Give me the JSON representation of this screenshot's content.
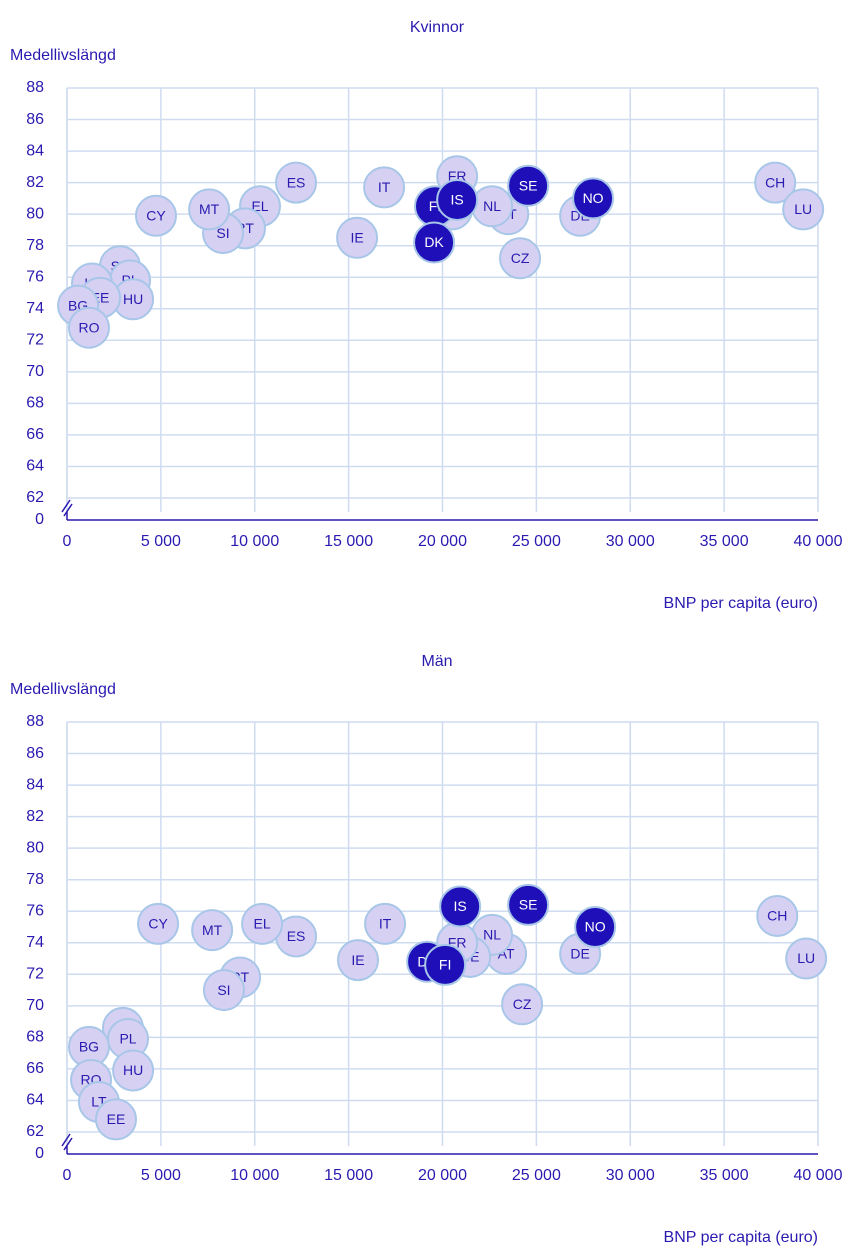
{
  "chart_data": [
    {
      "type": "scatter",
      "title": "Kvinnor",
      "y_label": "Medellivslängd",
      "x_label": "BNP per capita (euro)",
      "xlim": [
        0,
        40000
      ],
      "xticks": [
        0,
        {
          "value": 5000,
          "label": "5 000"
        },
        {
          "value": 10000,
          "label": "10 000"
        },
        {
          "value": 15000,
          "label": "15 000"
        },
        {
          "value": 20000,
          "label": "20 000"
        },
        {
          "value": 25000,
          "label": "25 000"
        },
        {
          "value": 30000,
          "label": "30 000"
        },
        {
          "value": 35000,
          "label": "35 000"
        },
        {
          "value": 40000,
          "label": "40 000"
        }
      ],
      "ylim": [
        0,
        88
      ],
      "y_break": [
        0,
        62
      ],
      "yticks": [
        0,
        62,
        64,
        66,
        68,
        70,
        72,
        74,
        76,
        78,
        80,
        82,
        84,
        86,
        88
      ],
      "grid": true,
      "series": [
        {
          "color": "#d6d1f3",
          "labels": [
            "CH",
            "LU",
            "DE",
            "AT",
            "NL",
            "CZ",
            "BE",
            "FR",
            "IT",
            "IE",
            "ES",
            "EL",
            "PT",
            "SI",
            "MT",
            "CY",
            "SK",
            "PL",
            "HU",
            "LT",
            "EE",
            "BG",
            "RO"
          ],
          "x": [
            37720,
            39210,
            27330,
            23500,
            22640,
            24130,
            20510,
            20780,
            16890,
            15450,
            12200,
            10280,
            9480,
            8310,
            7570,
            4740,
            2820,
            3360,
            3520,
            1330,
            1760,
            590,
            1170
          ],
          "y": [
            82.0,
            80.3,
            79.9,
            80.0,
            80.5,
            77.2,
            80.3,
            82.4,
            81.7,
            78.5,
            82.0,
            80.5,
            79.1,
            78.8,
            80.3,
            79.9,
            76.7,
            75.8,
            74.6,
            75.6,
            74.7,
            74.2,
            72.8
          ]
        },
        {
          "color": "#1e0fb8",
          "labels": [
            "FI",
            "DK",
            "IS",
            "SE",
            "NO"
          ],
          "x": [
            19600,
            19550,
            20780,
            24560,
            28020
          ],
          "y": [
            80.5,
            78.2,
            80.9,
            81.8,
            81.0
          ]
        }
      ]
    },
    {
      "type": "scatter",
      "title": "Män",
      "y_label": "Medellivslängd",
      "x_label": "BNP per capita (euro)",
      "xlim": [
        0,
        40000
      ],
      "xticks": [
        0,
        {
          "value": 5000,
          "label": "5 000"
        },
        {
          "value": 10000,
          "label": "10 000"
        },
        {
          "value": 15000,
          "label": "15 000"
        },
        {
          "value": 20000,
          "label": "20 000"
        },
        {
          "value": 25000,
          "label": "25 000"
        },
        {
          "value": 30000,
          "label": "30 000"
        },
        {
          "value": 35000,
          "label": "35 000"
        },
        {
          "value": 40000,
          "label": "40 000"
        }
      ],
      "ylim": [
        0,
        88
      ],
      "y_break": [
        0,
        62
      ],
      "yticks": [
        0,
        62,
        64,
        66,
        68,
        70,
        72,
        74,
        76,
        78,
        80,
        82,
        84,
        86,
        88
      ],
      "grid": true,
      "series": [
        {
          "color": "#d6d1f3",
          "labels": [
            "CH",
            "LU",
            "DE",
            "AT",
            "NL",
            "CZ",
            "BE",
            "FR",
            "IT",
            "IE",
            "ES",
            "EL",
            "PT",
            "SI",
            "MT",
            "CY",
            "SK",
            "PL",
            "HU",
            "BG",
            "RO",
            "LT",
            "EE"
          ],
          "x": [
            37830,
            39370,
            27330,
            23390,
            22640,
            24240,
            21470,
            20780,
            16940,
            15500,
            12200,
            10390,
            9220,
            8360,
            7730,
            4850,
            2980,
            3250,
            3520,
            1170,
            1280,
            1700,
            2610
          ],
          "y": [
            75.7,
            73.0,
            73.3,
            73.3,
            74.5,
            70.1,
            73.1,
            74.0,
            75.2,
            72.9,
            74.4,
            75.2,
            71.8,
            71.0,
            74.8,
            75.2,
            68.6,
            67.9,
            65.9,
            67.4,
            65.3,
            63.9,
            62.8
          ]
        },
        {
          "color": "#1e0fb8",
          "labels": [
            "DK",
            "FI",
            "IS",
            "SE",
            "NO"
          ],
          "x": [
            19180,
            20140,
            20940,
            24560,
            28130
          ],
          "y": [
            72.8,
            72.6,
            76.3,
            76.4,
            75.0
          ]
        }
      ]
    }
  ]
}
